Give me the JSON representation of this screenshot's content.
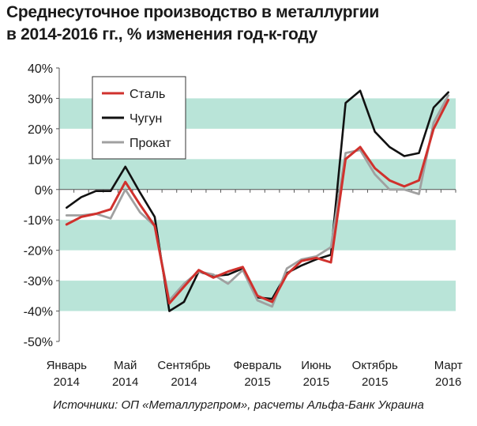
{
  "title": {
    "line1": "Среднесуточное производство в металлургии",
    "line2": "в 2014-2016 гг., % изменения год-к-году"
  },
  "source": "Источники: ОП «Металлургпром», расчеты Альфа-Банк Украина",
  "colors": {
    "band": "#b9e4d8",
    "steel": "#d0312d",
    "pig_iron": "#111111",
    "rolled": "#a0a0a0",
    "axis": "#555555"
  },
  "chart_data": {
    "type": "line",
    "ylim": [
      -50,
      40
    ],
    "yticks": [
      -50,
      -40,
      -30,
      -20,
      -10,
      0,
      10,
      20,
      30,
      40
    ],
    "ytick_labels": [
      "-50%",
      "-40%",
      "-30%",
      "-20%",
      "-10%",
      "0%",
      "10%",
      "20%",
      "30%",
      "40%"
    ],
    "x": [
      "2014-01",
      "2014-02",
      "2014-03",
      "2014-04",
      "2014-05",
      "2014-06",
      "2014-07",
      "2014-08",
      "2014-09",
      "2014-10",
      "2014-11",
      "2014-12",
      "2015-01",
      "2015-02",
      "2015-03",
      "2015-04",
      "2015-05",
      "2015-06",
      "2015-07",
      "2015-08",
      "2015-09",
      "2015-10",
      "2015-11",
      "2015-12",
      "2016-01",
      "2016-02",
      "2016-03"
    ],
    "xtick_labels": [
      {
        "month": "Январь",
        "year": "2014"
      },
      {
        "month": "Май",
        "year": "2014"
      },
      {
        "month": "Сентябрь",
        "year": "2014"
      },
      {
        "month": "Февраль",
        "year": "2015"
      },
      {
        "month": "Июнь",
        "year": "2015"
      },
      {
        "month": "Октябрь",
        "year": "2015"
      },
      {
        "month": "Март",
        "year": "2016"
      }
    ],
    "series": [
      {
        "name": "Сталь",
        "color": "#d0312d",
        "values": [
          -11.5,
          -9,
          -8,
          -6.5,
          2.5,
          -5,
          -12,
          -37.5,
          -32,
          -26.5,
          -29,
          -27,
          -25.5,
          -35,
          -37,
          -28,
          -23.5,
          -22.5,
          -24,
          10,
          14,
          7,
          3,
          1,
          3,
          20,
          29.5
        ]
      },
      {
        "name": "Чугун",
        "color": "#111111",
        "values": [
          -6,
          -2.5,
          -0.5,
          -0.5,
          7.5,
          -1,
          -9,
          -40,
          -37,
          -27,
          -28.5,
          -28,
          -26,
          -35.5,
          -36,
          -27.5,
          -25,
          -23,
          -21.5,
          28.5,
          32.5,
          19,
          14,
          11,
          12,
          27,
          32
        ]
      },
      {
        "name": "Прокат",
        "color": "#a0a0a0",
        "values": [
          -8.5,
          -8.5,
          -8,
          -9.5,
          0,
          -7.5,
          -12,
          -36.5,
          -31,
          -27,
          -28,
          -31,
          -26.5,
          -36.5,
          -38.5,
          -26,
          -23,
          -22,
          -19,
          12,
          13,
          5,
          0,
          0,
          -1.5,
          22,
          31
        ]
      }
    ]
  }
}
